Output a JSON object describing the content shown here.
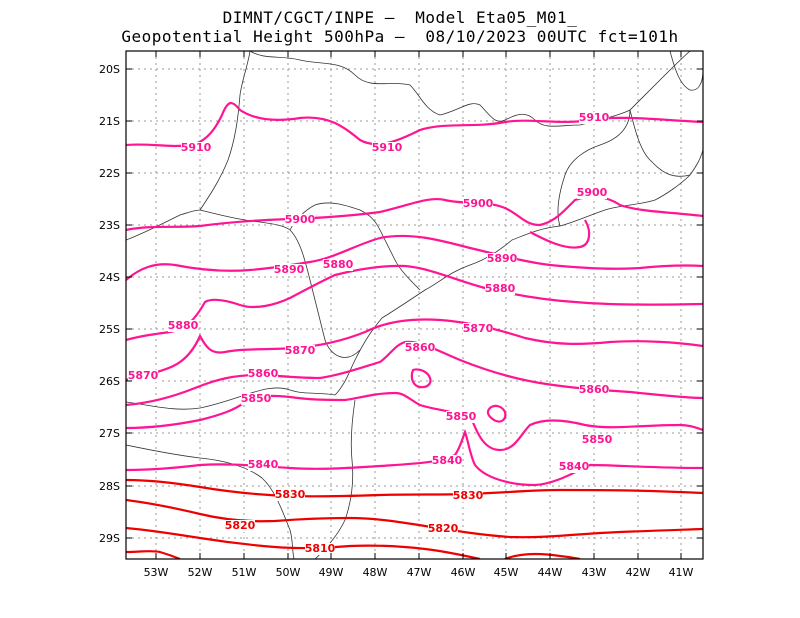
{
  "title": {
    "line1": "DIMNT/CGCT/INPE –  Model Eta05_M01_",
    "line2": "Geopotential Height 500hPa –  08/10/2023 00UTC fct=101h"
  },
  "axes": {
    "lat_labels": [
      "20S",
      "21S",
      "22S",
      "23S",
      "24S",
      "25S",
      "26S",
      "27S",
      "28S",
      "29S"
    ],
    "lon_labels": [
      "53W",
      "52W",
      "51W",
      "50W",
      "49W",
      "48W",
      "47W",
      "46W",
      "45W",
      "44W",
      "43W",
      "42W",
      "41W"
    ]
  },
  "contour_labels": [
    "5910",
    "5910",
    "5910",
    "5900",
    "5900",
    "5900",
    "5890",
    "5890",
    "5880",
    "5880",
    "5880",
    "5870",
    "5870",
    "5870",
    "5860",
    "5860",
    "5860",
    "5850",
    "5850",
    "5850",
    "5840",
    "5840",
    "5840",
    "5830",
    "5830",
    "5820",
    "5820",
    "5810"
  ],
  "colors": {
    "contour_high": "#ff1493",
    "contour_low": "#ee0000",
    "coast": "#333333",
    "grid": "#999999"
  }
}
